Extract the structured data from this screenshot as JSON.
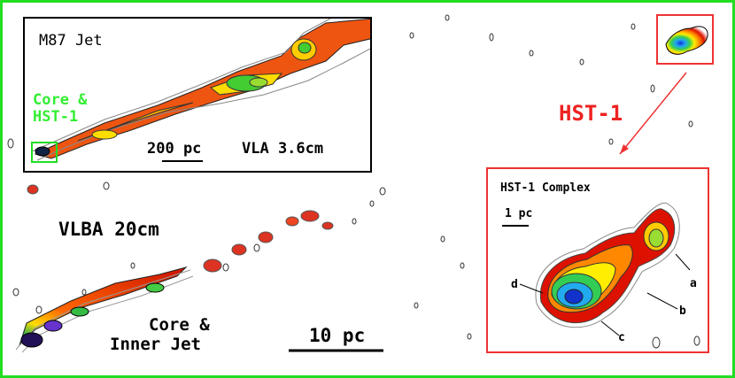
{
  "labels": {
    "m87_jet": "M87 Jet",
    "core_hst1_line1": "Core &",
    "core_hst1_line2": "HST-1",
    "scale_200pc": "200 pc",
    "vla": "VLA 3.6cm",
    "vlba": "VLBA 20cm",
    "core_inner_line1": "Core &",
    "core_inner_line2": "Inner Jet",
    "scale_10pc": "10 pc",
    "hst1": "HST-1",
    "hst1_complex": "HST-1 Complex",
    "scale_1pc": "1 pc",
    "knot_a": "a",
    "knot_b": "b",
    "knot_c": "c",
    "knot_d": "d"
  },
  "colors": {
    "frame": "#22dd22",
    "inset_hst_border": "#ee3333",
    "core_box": "#22dd22",
    "hst1_label": "#ee2222",
    "core_hst1_label": "#33ee33"
  }
}
